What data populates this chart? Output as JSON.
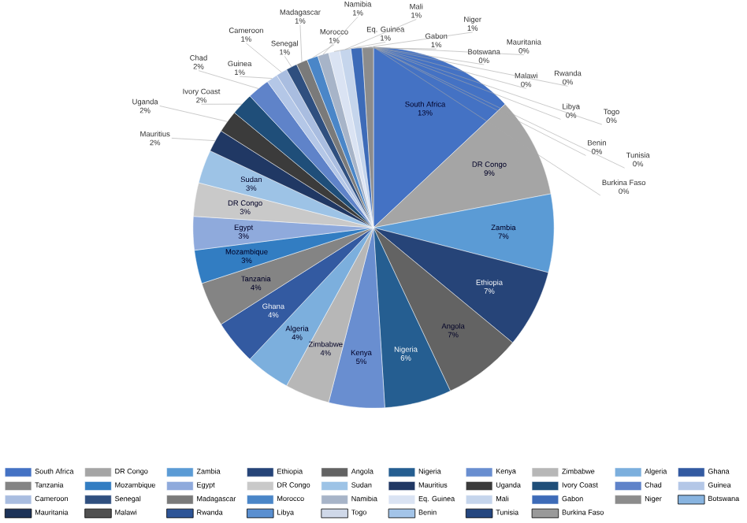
{
  "chart_data": {
    "type": "pie",
    "categories": [
      "South Africa",
      "DR Congo",
      "Zambia",
      "Ethiopia",
      "Angola",
      "Nigeria",
      "Kenya",
      "Zimbabwe",
      "Algeria",
      "Ghana",
      "Tanzania",
      "Mozambique",
      "Egypt",
      "DR Congo",
      "Sudan",
      "Mauritius",
      "Uganda",
      "Ivory Coast",
      "Chad",
      "Guinea",
      "Cameroon",
      "Senegal",
      "Madagascar",
      "Morocco",
      "Namibia",
      "Eq. Guinea",
      "Mali",
      "Gabon",
      "Niger",
      "Botswana",
      "Mauritania",
      "Malawi",
      "Rwanda",
      "Libya",
      "Togo",
      "Benin",
      "Tunisia",
      "Burkina Faso"
    ],
    "values": [
      13,
      9,
      7,
      7,
      7,
      6,
      5,
      4,
      4,
      4,
      4,
      3,
      3,
      3,
      3,
      2,
      2,
      2,
      2,
      1,
      1,
      1,
      1,
      1,
      1,
      1,
      1,
      1,
      1,
      0,
      0,
      0,
      0,
      0,
      0,
      0,
      0,
      0
    ],
    "value_labels": [
      "13%",
      "9%",
      "7%",
      "7%",
      "7%",
      "6%",
      "5%",
      "4%",
      "4%",
      "4%",
      "4%",
      "3%",
      "3%",
      "3%",
      "3%",
      "2%",
      "2%",
      "2%",
      "2%",
      "1%",
      "1%",
      "1%",
      "1%",
      "1%",
      "1%",
      "1%",
      "1%",
      "1%",
      "1%",
      "0%",
      "0%",
      "0%",
      "0%",
      "0%",
      "0%",
      "0%",
      "0%",
      "0%"
    ],
    "colors": [
      "#4472c4",
      "#a5a5a5",
      "#5b9bd5",
      "#264478",
      "#636363",
      "#255e91",
      "#698ed0",
      "#b7b7b7",
      "#7cafdd",
      "#335aa1",
      "#848484",
      "#327dc2",
      "#8faadc",
      "#c9c9c9",
      "#9dc3e6",
      "#203864",
      "#3b3b3b",
      "#1f4e79",
      "#5f83c9",
      "#b4c7e7",
      "#a9bde0",
      "#2f4f7f",
      "#7a7a7a",
      "#4a86c8",
      "#a7b4c8",
      "#dae3f3",
      "#c5d5ec",
      "#3d6bb8",
      "#8c8c8c",
      "#88b4e0",
      "#1c3258",
      "#505050",
      "#2e5597",
      "#5a8fd0",
      "#cfd8e8",
      "#a3c4e8",
      "#24467f",
      "#999999"
    ],
    "legend": "bottom"
  }
}
